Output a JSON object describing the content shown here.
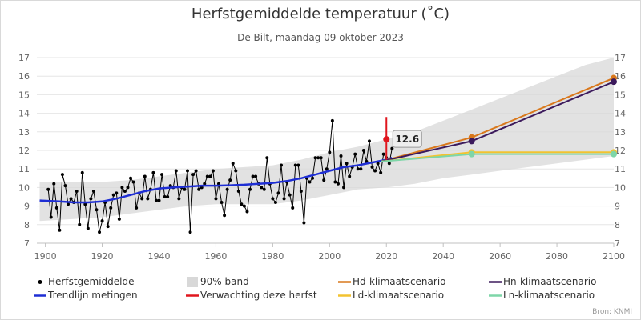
{
  "title": "Herfstgemiddelde temperatuur (˚C)",
  "subtitle": "De Bilt, maandag 09 oktober 2023",
  "source": "Bron: KNMI",
  "colors": {
    "observed": "#000000",
    "band": "#d8d8d8",
    "trend": "#1e2ed4",
    "forecast": "#e0161e",
    "hd": "#d9781c",
    "hn": "#3c1a5c",
    "ld": "#f2c230",
    "ln": "#7ed6a8",
    "grid": "#e6e6e6"
  },
  "chart_data": {
    "type": "line",
    "xlim": [
      1897,
      2100
    ],
    "ylim": [
      7,
      17
    ],
    "x_ticks": [
      "1900",
      "1920",
      "1940",
      "1960",
      "1980",
      "2000",
      "2020",
      "2040",
      "2060",
      "2080",
      "2100"
    ],
    "y_ticks_left": [
      "7",
      "8",
      "9",
      "10",
      "11",
      "12",
      "13",
      "14",
      "15",
      "16",
      "17"
    ],
    "y_ticks_right": [
      "7",
      "8",
      "9",
      "10",
      "11",
      "12",
      "13",
      "14",
      "15",
      "16",
      "17"
    ],
    "grid": true,
    "legend_position": "bottom",
    "legend": [
      {
        "id": "observed",
        "label": "Herfstgemiddelde"
      },
      {
        "id": "band",
        "label": "90% band"
      },
      {
        "id": "hd",
        "label": "Hd-klimaatscenario"
      },
      {
        "id": "hn",
        "label": "Hn-klimaatscenario"
      },
      {
        "id": "trend",
        "label": "Trendlijn metingen"
      },
      {
        "id": "forecast",
        "label": "Verwachting deze herfst"
      },
      {
        "id": "ld",
        "label": "Ld-klimaatscenario"
      },
      {
        "id": "ln",
        "label": "Ln-klimaatscenario"
      }
    ],
    "observed": {
      "x": [
        1901,
        1902,
        1903,
        1904,
        1905,
        1906,
        1907,
        1908,
        1909,
        1910,
        1911,
        1912,
        1913,
        1914,
        1915,
        1916,
        1917,
        1918,
        1919,
        1920,
        1921,
        1922,
        1923,
        1924,
        1925,
        1926,
        1927,
        1928,
        1929,
        1930,
        1931,
        1932,
        1933,
        1934,
        1935,
        1936,
        1937,
        1938,
        1939,
        1940,
        1941,
        1942,
        1943,
        1944,
        1945,
        1946,
        1947,
        1948,
        1949,
        1950,
        1951,
        1952,
        1953,
        1954,
        1955,
        1956,
        1957,
        1958,
        1959,
        1960,
        1961,
        1962,
        1963,
        1964,
        1965,
        1966,
        1967,
        1968,
        1969,
        1970,
        1971,
        1972,
        1973,
        1974,
        1975,
        1976,
        1977,
        1978,
        1979,
        1980,
        1981,
        1982,
        1983,
        1984,
        1985,
        1986,
        1987,
        1988,
        1989,
        1990,
        1991,
        1992,
        1993,
        1994,
        1995,
        1996,
        1997,
        1998,
        1999,
        2000,
        2001,
        2002,
        2003,
        2004,
        2005,
        2006,
        2007,
        2008,
        2009,
        2010,
        2011,
        2012,
        2013,
        2014,
        2015,
        2016,
        2017,
        2018,
        2019,
        2020,
        2021,
        2022
      ],
      "y": [
        9.9,
        8.4,
        10.2,
        8.9,
        7.7,
        10.7,
        10.1,
        9.1,
        9.4,
        9.2,
        9.8,
        8.0,
        10.8,
        9.1,
        7.8,
        9.4,
        9.8,
        8.8,
        7.6,
        8.2,
        9.2,
        7.9,
        8.9,
        9.6,
        9.7,
        8.3,
        10.0,
        9.8,
        10.0,
        10.5,
        10.3,
        8.9,
        9.7,
        9.4,
        10.6,
        9.4,
        9.9,
        10.8,
        9.3,
        9.3,
        10.7,
        9.5,
        9.5,
        10.1,
        10.0,
        10.9,
        9.4,
        10.0,
        9.9,
        10.9,
        7.6,
        10.7,
        10.9,
        9.9,
        10.0,
        10.2,
        10.6,
        10.6,
        10.9,
        9.4,
        10.2,
        9.2,
        8.5,
        9.9,
        10.4,
        11.3,
        10.9,
        9.8,
        9.1,
        9.0,
        8.7,
        9.9,
        10.6,
        10.6,
        10.2,
        10.0,
        9.9,
        11.6,
        10.2,
        9.4,
        9.2,
        9.7,
        11.2,
        9.4,
        10.3,
        9.6,
        8.9,
        11.2,
        11.2,
        9.8,
        8.1,
        10.5,
        10.3,
        10.5,
        11.6,
        11.6,
        11.6,
        10.4,
        11.0,
        11.9,
        13.6,
        10.3,
        10.2,
        11.7,
        10.0,
        11.3,
        10.6,
        11.1,
        11.8,
        11.0,
        11.0,
        12.0,
        11.4,
        12.5,
        11.1,
        10.9,
        11.3,
        10.8,
        11.8,
        11.6,
        11.3,
        12.1
      ]
    },
    "trend": {
      "x": [
        1898,
        1905,
        1910,
        1915,
        1920,
        1925,
        1930,
        1935,
        1940,
        1945,
        1950,
        1955,
        1960,
        1965,
        1970,
        1975,
        1980,
        1985,
        1990,
        1995,
        2000,
        2005,
        2010,
        2015,
        2020,
        2022
      ],
      "y": [
        9.3,
        9.25,
        9.2,
        9.2,
        9.25,
        9.4,
        9.6,
        9.8,
        9.95,
        10.0,
        10.05,
        10.1,
        10.1,
        10.12,
        10.15,
        10.2,
        10.25,
        10.35,
        10.5,
        10.7,
        10.9,
        11.1,
        11.2,
        11.35,
        11.5,
        11.6
      ]
    },
    "band_90": {
      "x": [
        1898,
        1910,
        1920,
        1930,
        1940,
        1950,
        1960,
        1970,
        1980,
        1990,
        2000,
        2010,
        2020,
        2030,
        2040,
        2050,
        2060,
        2070,
        2080,
        2090,
        2100
      ],
      "lower": [
        8.2,
        8.3,
        8.4,
        8.6,
        8.8,
        9.0,
        9.1,
        9.1,
        9.1,
        9.3,
        9.6,
        9.9,
        10.0,
        10.2,
        10.5,
        10.7,
        10.9,
        11.1,
        11.3,
        11.5,
        11.7
      ],
      "upper": [
        10.3,
        10.3,
        10.3,
        10.4,
        10.6,
        10.8,
        11.0,
        11.1,
        11.2,
        11.5,
        11.9,
        12.2,
        12.6,
        13.0,
        13.6,
        14.2,
        14.8,
        15.4,
        16.0,
        16.6,
        17.0
      ]
    },
    "forecast": {
      "year": 2020,
      "value": 12.6,
      "lower": 11.5,
      "upper": 13.8,
      "label": "12.6"
    },
    "scenarios": [
      {
        "id": "hd",
        "name": "Hd-klimaatscenario",
        "x": [
          2018,
          2050,
          2100
        ],
        "y": [
          11.4,
          12.7,
          15.9
        ]
      },
      {
        "id": "hn",
        "name": "Hn-klimaatscenario",
        "x": [
          2018,
          2050,
          2100
        ],
        "y": [
          11.4,
          12.5,
          15.7
        ]
      },
      {
        "id": "ld",
        "name": "Ld-klimaatscenario",
        "x": [
          2018,
          2050,
          2100
        ],
        "y": [
          11.4,
          11.9,
          11.9
        ]
      },
      {
        "id": "ln",
        "name": "Ln-klimaatscenario",
        "x": [
          2018,
          2050,
          2100
        ],
        "y": [
          11.4,
          11.8,
          11.8
        ]
      }
    ]
  }
}
